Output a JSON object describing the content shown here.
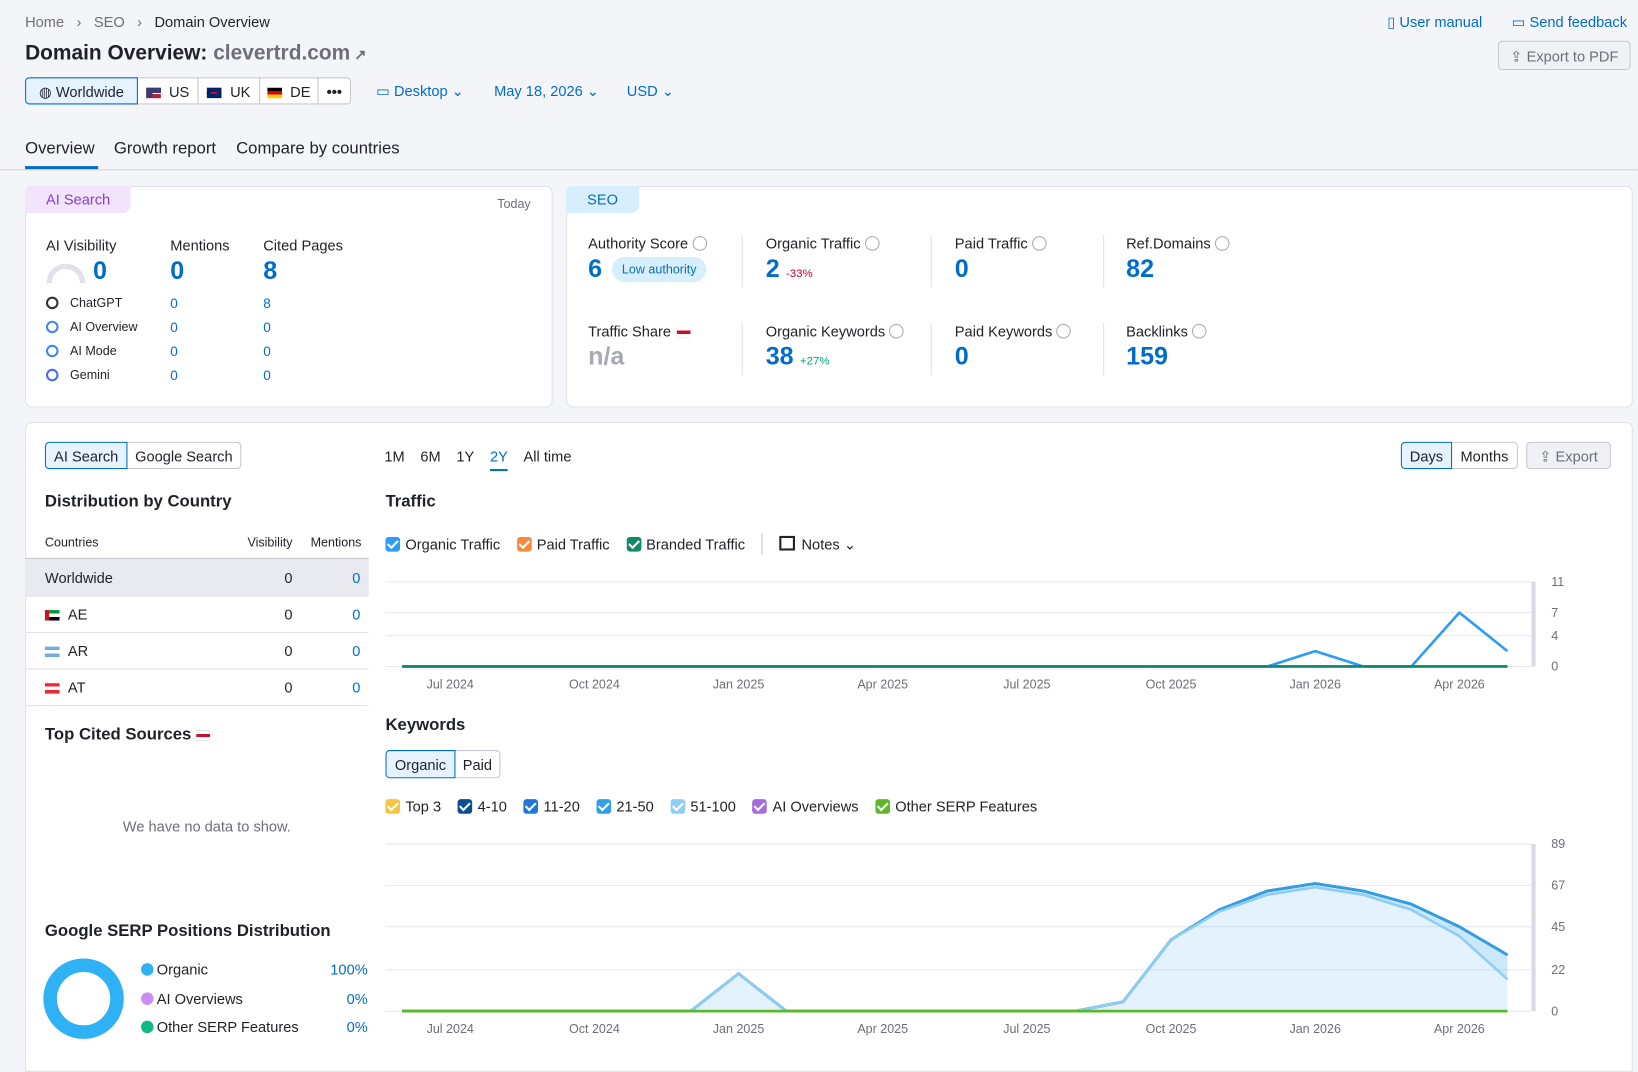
{
  "breadcrumb": [
    "Home",
    "SEO",
    "Domain Overview"
  ],
  "header": {
    "title": "Domain Overview:",
    "domain": "clevertrd.com",
    "user_manual": "User manual",
    "feedback": "Send feedback",
    "export": "Export to PDF"
  },
  "toolbar": {
    "regions": [
      "Worldwide",
      "US",
      "UK",
      "DE"
    ],
    "device": "Desktop",
    "date": "May 18, 2026",
    "currency": "USD"
  },
  "tabs": [
    "Overview",
    "Growth report",
    "Compare by countries"
  ],
  "ai_card": {
    "badge": "AI Search",
    "period": "Today",
    "metrics": [
      {
        "label": "AI Visibility",
        "value": 0
      },
      {
        "label": "Mentions",
        "value": 0
      },
      {
        "label": "Cited Pages",
        "value": 8
      }
    ],
    "rows": [
      {
        "name": "ChatGPT",
        "mentions": 0,
        "cited": 8
      },
      {
        "name": "AI Overview",
        "mentions": 0,
        "cited": 0
      },
      {
        "name": "AI Mode",
        "mentions": 0,
        "cited": 0
      },
      {
        "name": "Gemini",
        "mentions": 0,
        "cited": 0
      }
    ]
  },
  "seo_card": {
    "badge": "SEO",
    "metrics": [
      {
        "label": "Authority Score",
        "value": 6,
        "tag": "Low authority"
      },
      {
        "label": "Organic Traffic",
        "value": 2,
        "change": "-33%"
      },
      {
        "label": "Paid Traffic",
        "value": 0
      },
      {
        "label": "Ref.Domains",
        "value": 82
      },
      {
        "label": "Traffic Share",
        "value": "n/a"
      },
      {
        "label": "Organic Keywords",
        "value": 38,
        "change": "+27%"
      },
      {
        "label": "Paid Keywords",
        "value": 0
      },
      {
        "label": "Backlinks",
        "value": 159
      }
    ]
  },
  "panel": {
    "toggle": [
      "AI Search",
      "Google Search"
    ],
    "ranges": [
      "1M",
      "6M",
      "1Y",
      "2Y",
      "All time"
    ],
    "granularity": [
      "Days",
      "Months"
    ],
    "export": "Export"
  },
  "country_table": {
    "title": "Distribution by Country",
    "columns": [
      "Countries",
      "Visibility",
      "Mentions"
    ],
    "rows": [
      [
        "Worldwide",
        0,
        0
      ],
      [
        "AE",
        0,
        0
      ],
      [
        "AR",
        0,
        0
      ],
      [
        "AT",
        0,
        0
      ]
    ]
  },
  "top_cited": {
    "title": "Top Cited Sources",
    "empty": "We have no data to show."
  },
  "serp_distribution": {
    "type": "pie",
    "title": "Google SERP Positions Distribution",
    "categories": [
      "Organic",
      "AI Overviews",
      "Other SERP Features"
    ],
    "values": [
      100,
      0,
      0
    ],
    "value_labels": [
      "100%",
      "0%",
      "0%"
    ],
    "colors": [
      "#2fb1f5",
      "#c98df3",
      "#12b886"
    ]
  },
  "traffic_chart": {
    "type": "line",
    "title": "Traffic",
    "notes": "Notes",
    "categories": [
      null,
      "Jul 2024",
      null,
      null,
      "Oct 2024",
      null,
      null,
      "Jan 2025",
      null,
      null,
      "Apr 2025",
      null,
      null,
      "Jul 2025",
      null,
      null,
      "Oct 2025",
      null,
      null,
      "Jan 2026",
      null,
      null,
      "Apr 2026",
      null
    ],
    "ylim": [
      0,
      11
    ],
    "yticks": [
      0,
      4,
      7,
      11
    ],
    "grid": true,
    "series": [
      {
        "name": "Organic Traffic",
        "color": "#2e9cf5",
        "values": [
          0,
          0,
          0,
          0,
          0,
          0,
          0,
          0,
          0,
          0,
          0,
          0,
          0,
          0,
          0,
          0,
          0,
          0,
          0,
          2,
          0,
          0,
          7,
          2
        ]
      },
      {
        "name": "Paid Traffic",
        "color": "#f58a3f",
        "values": [
          0,
          0,
          0,
          0,
          0,
          0,
          0,
          0,
          0,
          0,
          0,
          0,
          0,
          0,
          0,
          0,
          0,
          0,
          0,
          0,
          0,
          0,
          0,
          0
        ]
      },
      {
        "name": "Branded Traffic",
        "color": "#0e8a6a",
        "values": [
          0,
          0,
          0,
          0,
          0,
          0,
          0,
          0,
          0,
          0,
          0,
          0,
          0,
          0,
          0,
          0,
          0,
          0,
          0,
          0,
          0,
          0,
          0,
          0
        ]
      }
    ]
  },
  "keywords_chart": {
    "type": "area",
    "title": "Keywords",
    "toggle": [
      "Organic",
      "Paid"
    ],
    "stacked": true,
    "categories": [
      null,
      "Jul 2024",
      null,
      null,
      "Oct 2024",
      null,
      null,
      "Jan 2025",
      null,
      null,
      "Apr 2025",
      null,
      null,
      "Jul 2025",
      null,
      null,
      "Oct 2025",
      null,
      null,
      "Jan 2026",
      null,
      null,
      "Apr 2026",
      null
    ],
    "ylim": [
      0,
      89
    ],
    "yticks": [
      0,
      22,
      45,
      67,
      89
    ],
    "grid": true,
    "series": [
      {
        "name": "Top 3",
        "color": "#f5c542",
        "values": [
          0,
          0,
          0,
          0,
          0,
          0,
          0,
          0,
          0,
          0,
          0,
          0,
          0,
          0,
          0,
          0,
          0,
          0,
          0,
          0,
          0,
          0,
          0,
          0
        ]
      },
      {
        "name": "4-10",
        "color": "#0f4d92",
        "values": [
          0,
          0,
          0,
          0,
          0,
          0,
          0,
          0,
          0,
          0,
          0,
          0,
          0,
          0,
          0,
          0,
          0,
          0,
          0,
          0,
          0,
          0,
          0,
          0
        ]
      },
      {
        "name": "11-20",
        "color": "#1d78d6",
        "values": [
          0,
          0,
          0,
          0,
          0,
          0,
          0,
          0,
          0,
          0,
          0,
          0,
          0,
          0,
          0,
          0,
          0,
          0,
          0,
          0,
          0,
          0,
          0,
          0
        ]
      },
      {
        "name": "21-50",
        "color": "#2f9fe8",
        "values": [
          0,
          0,
          0,
          0,
          0,
          0,
          0,
          0,
          0,
          0,
          0,
          0,
          0,
          0,
          0,
          0,
          0,
          1,
          2,
          2,
          2,
          3,
          5,
          13
        ]
      },
      {
        "name": "51-100",
        "color": "#8fcdf5",
        "values": [
          0,
          0,
          0,
          0,
          0,
          0,
          0,
          20,
          0,
          0,
          0,
          0,
          0,
          0,
          0,
          5,
          38,
          53,
          62,
          66,
          62,
          54,
          40,
          17
        ]
      },
      {
        "name": "AI Overviews",
        "color": "#a76ae0",
        "values": [
          0,
          0,
          0,
          0,
          0,
          0,
          0,
          0,
          0,
          0,
          0,
          0,
          0,
          0,
          0,
          0,
          0,
          0,
          0,
          0,
          0,
          0,
          0,
          0
        ]
      },
      {
        "name": "Other SERP Features",
        "color": "#5cb82a",
        "values": [
          0,
          0,
          0,
          0,
          0,
          0,
          0,
          0,
          0,
          0,
          0,
          0,
          0,
          0,
          0,
          0,
          0,
          0,
          0,
          0,
          0,
          0,
          0,
          0
        ]
      }
    ]
  }
}
